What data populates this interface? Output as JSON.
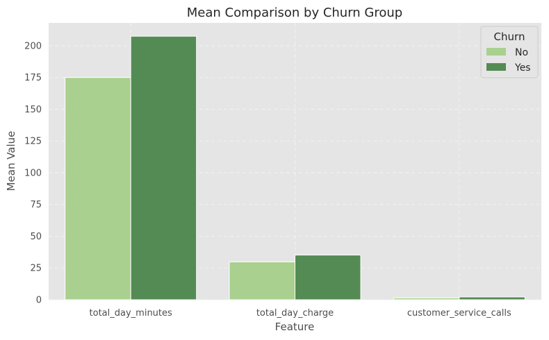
{
  "chart_data": {
    "type": "bar",
    "title": "Mean Comparison by Churn Group",
    "xlabel": "Feature",
    "ylabel": "Mean Value",
    "categories": [
      "total_day_minutes",
      "total_day_charge",
      "customer_service_calls"
    ],
    "series": [
      {
        "name": "No",
        "values": [
          175,
          29.8,
          1.45
        ],
        "color": "#a9d08e"
      },
      {
        "name": "Yes",
        "values": [
          207.5,
          35.2,
          2.2
        ],
        "color": "#548b54"
      }
    ],
    "ylim": [
      0,
      218
    ],
    "yticks": [
      0,
      25,
      50,
      75,
      100,
      125,
      150,
      175,
      200
    ],
    "grid": true,
    "legend": {
      "title": "Churn",
      "placement": "top-right"
    },
    "background": "#e5e5e5",
    "gridColor": "#f2f2f2"
  }
}
